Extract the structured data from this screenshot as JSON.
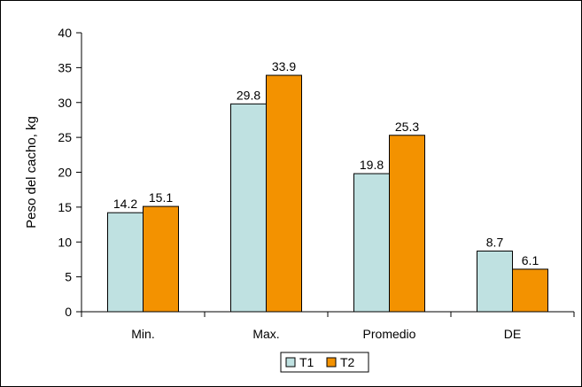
{
  "chart_data": {
    "type": "bar",
    "categories": [
      "Min.",
      "Max.",
      "Promedio",
      "DE"
    ],
    "series": [
      {
        "name": "T1",
        "values": [
          14.2,
          29.8,
          19.8,
          8.7
        ],
        "labels": [
          "14.2",
          "29.8",
          "19.8",
          "8.7"
        ],
        "color": "#bfe1e1"
      },
      {
        "name": "T2",
        "values": [
          15.1,
          33.9,
          25.3,
          6.1
        ],
        "labels": [
          "15.1",
          "33.9",
          "25.3",
          "6.1"
        ],
        "color": "#f39200"
      }
    ],
    "ylabel": "Peso del cacho, kg",
    "xlabel": "",
    "ylim": [
      0,
      40
    ],
    "yticks": [
      0,
      5,
      10,
      15,
      20,
      25,
      30,
      35,
      40
    ],
    "ytick_labels": [
      "0",
      "5",
      "10",
      "15",
      "20",
      "25",
      "30",
      "35",
      "40"
    ],
    "grid": false,
    "legend_position": "bottom-center",
    "colors": {
      "border": "#000000",
      "background": "#ffffff"
    }
  }
}
